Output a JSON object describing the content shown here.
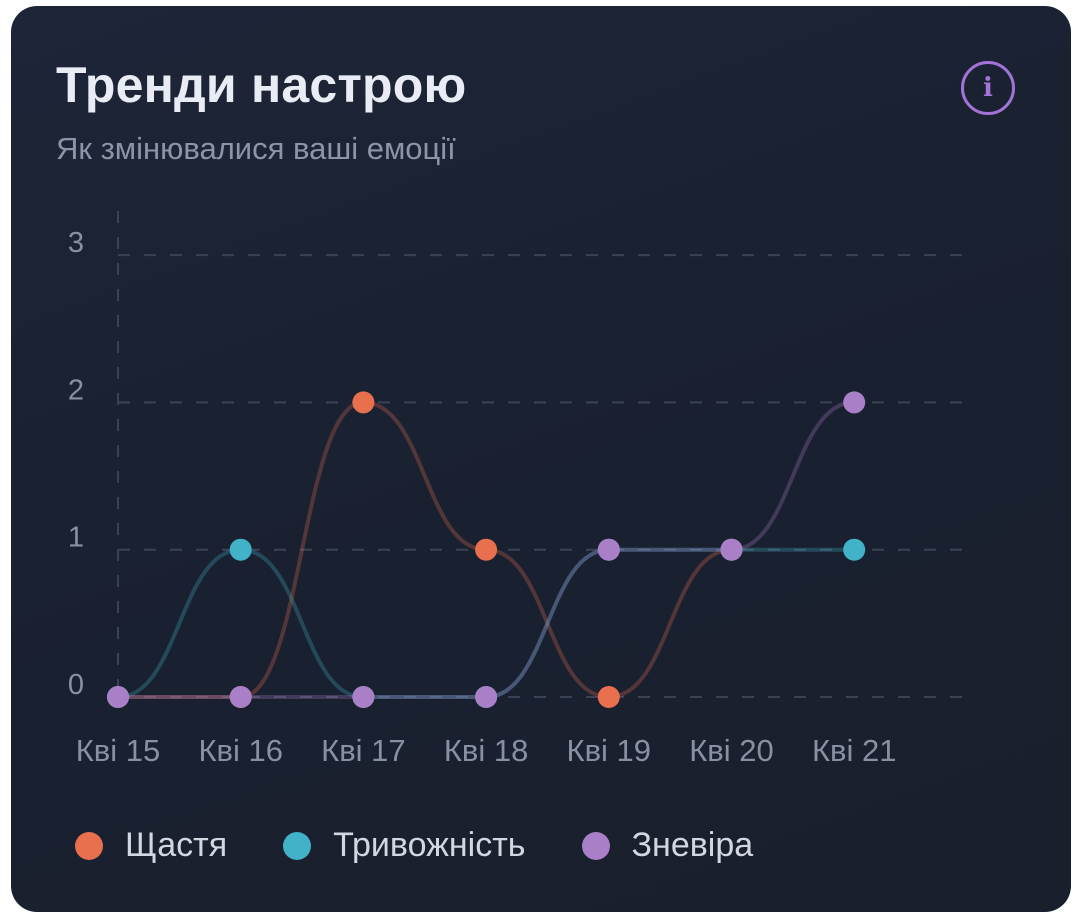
{
  "card": {
    "title": "Тренди настрою",
    "subtitle": "Як змінювалися ваші емоції",
    "info_icon": "info-icon"
  },
  "colors": {
    "happiness": "#e8704e",
    "anxiety": "#42b2c9",
    "despair": "#a97fc7",
    "accent": "#a374d8"
  },
  "chart_data": {
    "type": "line",
    "title": "Тренди настрою",
    "subtitle": "Як змінювалися ваші емоції",
    "xlabel": "",
    "ylabel": "",
    "categories": [
      "Кві 15",
      "Кві 16",
      "Кві 17",
      "Кві 18",
      "Кві 19",
      "Кві 20",
      "Кві 21"
    ],
    "ylim": [
      0,
      3
    ],
    "yticks": [
      0,
      1,
      2,
      3
    ],
    "grid": true,
    "curve": "smooth",
    "legend_position": "bottom",
    "series": [
      {
        "name": "Щастя",
        "color": "#e8704e",
        "values": [
          0,
          0,
          2,
          1,
          0,
          1,
          null
        ]
      },
      {
        "name": "Тривожність",
        "color": "#42b2c9",
        "values": [
          0,
          1,
          0,
          0,
          1,
          1,
          1
        ]
      },
      {
        "name": "Зневіра",
        "color": "#a97fc7",
        "values": [
          0,
          0,
          0,
          0,
          1,
          1,
          2
        ]
      }
    ]
  }
}
